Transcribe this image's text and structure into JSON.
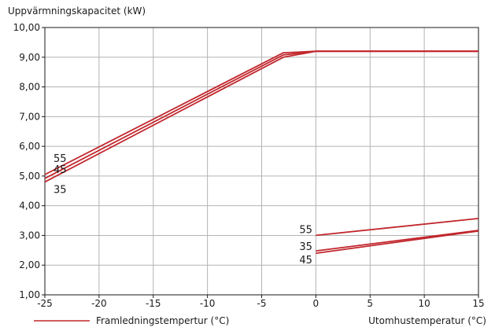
{
  "chart_data": {
    "type": "line",
    "ylabel": "Uppvärmningskapacitet (kW)",
    "xlabel": "Utomhustemperatur (°C)",
    "legend": {
      "label": "Framledningstempertur (°C)",
      "color": "#c1272d",
      "placement": "bottom-left"
    },
    "xlim": [
      -25,
      15
    ],
    "ylim": [
      1,
      10
    ],
    "x_ticks": [
      "-25",
      "-20",
      "-15",
      "-10",
      "-5",
      "0",
      "5",
      "10",
      "15"
    ],
    "y_ticks": [
      "1,00",
      "2,00",
      "3,00",
      "4,00",
      "5,00",
      "6,00",
      "7,00",
      "8,00",
      "9,00",
      "10,00"
    ],
    "grid": true,
    "line_color": "#c1272d",
    "series": [
      {
        "group": "upper",
        "label": "55",
        "points": [
          [
            -25,
            5.05
          ],
          [
            -3,
            9.15
          ],
          [
            0,
            9.2
          ],
          [
            15,
            9.2
          ]
        ]
      },
      {
        "group": "upper",
        "label": "45",
        "points": [
          [
            -25,
            4.92
          ],
          [
            -3,
            9.08
          ],
          [
            0,
            9.2
          ],
          [
            15,
            9.2
          ]
        ]
      },
      {
        "group": "upper",
        "label": "35",
        "points": [
          [
            -25,
            4.8
          ],
          [
            -3,
            9.0
          ],
          [
            0,
            9.2
          ],
          [
            15,
            9.2
          ]
        ]
      },
      {
        "group": "lower",
        "label": "55",
        "points": [
          [
            0,
            3.0
          ],
          [
            15,
            3.57
          ]
        ]
      },
      {
        "group": "lower",
        "label": "35",
        "points": [
          [
            0,
            2.48
          ],
          [
            15,
            3.17
          ]
        ]
      },
      {
        "group": "lower",
        "label": "45",
        "points": [
          [
            0,
            2.4
          ],
          [
            15,
            3.15
          ]
        ]
      }
    ]
  }
}
